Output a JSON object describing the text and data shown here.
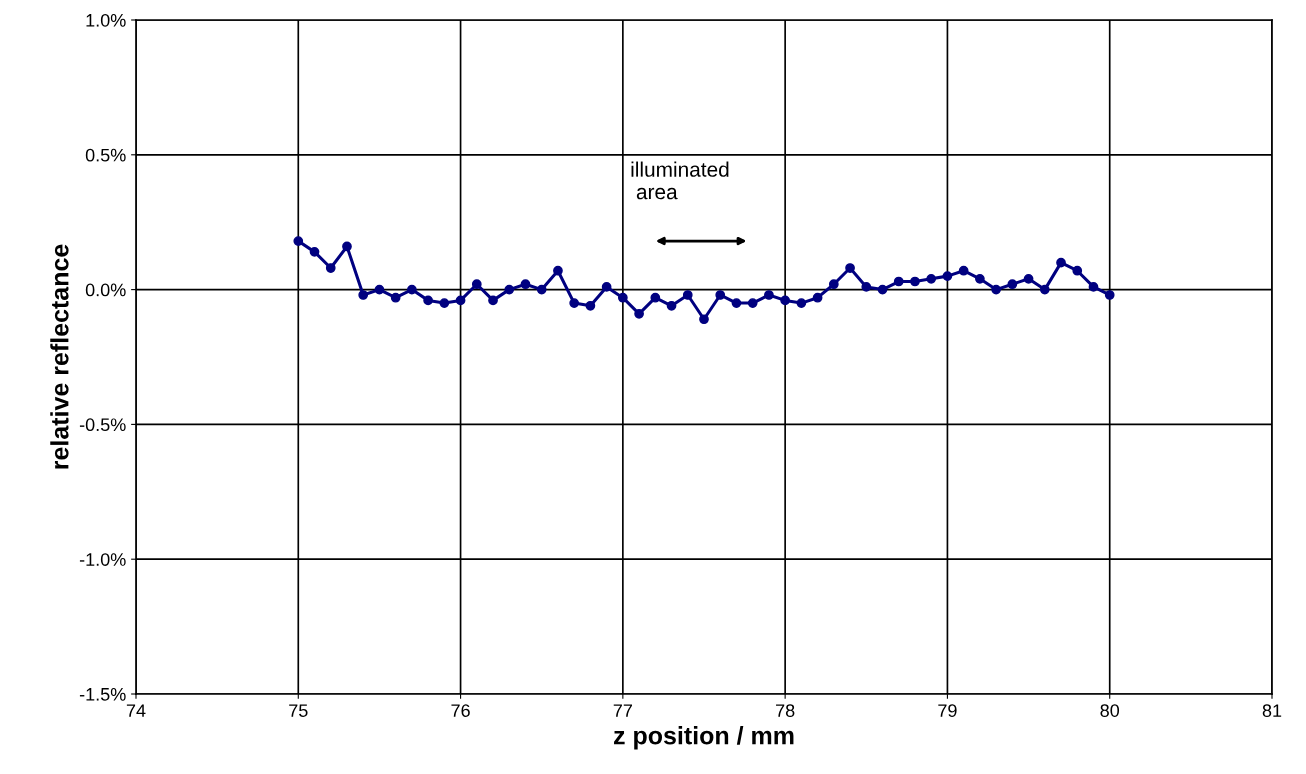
{
  "chart_data": {
    "type": "line",
    "xlabel": "z position / mm",
    "ylabel": "relative reflectance",
    "x": [
      75.0,
      75.1,
      75.2,
      75.3,
      75.4,
      75.5,
      75.6,
      75.7,
      75.8,
      75.9,
      76.0,
      76.1,
      76.2,
      76.3,
      76.4,
      76.5,
      76.6,
      76.7,
      76.8,
      76.9,
      77.0,
      77.1,
      77.2,
      77.3,
      77.4,
      77.5,
      77.6,
      77.7,
      77.8,
      77.9,
      78.0,
      78.1,
      78.2,
      78.3,
      78.4,
      78.5,
      78.6,
      78.7,
      78.8,
      78.9,
      79.0,
      79.1,
      79.2,
      79.3,
      79.4,
      79.5,
      79.6,
      79.7,
      79.8,
      79.9,
      80.0
    ],
    "series": [
      {
        "color": "#000080",
        "values": [
          0.18,
          0.14,
          0.08,
          0.16,
          -0.02,
          0.0,
          -0.03,
          0.0,
          -0.04,
          -0.05,
          -0.04,
          0.02,
          -0.04,
          0.0,
          0.02,
          0.0,
          0.07,
          -0.05,
          -0.06,
          0.01,
          -0.03,
          -0.09,
          -0.03,
          -0.06,
          -0.02,
          -0.11,
          -0.02,
          -0.05,
          -0.05,
          -0.02,
          -0.04,
          -0.05,
          -0.03,
          0.02,
          0.08,
          0.01,
          0.0,
          0.03,
          0.03,
          0.04,
          0.05,
          0.07,
          0.04,
          0.0,
          0.02,
          0.04,
          0.0,
          0.1,
          0.07,
          0.01,
          -0.02
        ]
      }
    ],
    "xlim": [
      74,
      81
    ],
    "xticks": [
      74,
      75,
      76,
      77,
      78,
      79,
      80,
      81
    ],
    "ylim": [
      -1.5,
      1.0
    ],
    "yticks": [
      {
        "value": -1.5,
        "label": "-1.5%"
      },
      {
        "value": -1.0,
        "label": "-1.0%"
      },
      {
        "value": -0.5,
        "label": "-0.5%"
      },
      {
        "value": 0.0,
        "label": "0.0%"
      },
      {
        "value": 0.5,
        "label": "0.5%"
      },
      {
        "value": 1.0,
        "label": "1.0%"
      }
    ],
    "grid": true,
    "marker": "circle",
    "line_style": "solid",
    "annotations": [
      "illuminated\n area"
    ]
  }
}
